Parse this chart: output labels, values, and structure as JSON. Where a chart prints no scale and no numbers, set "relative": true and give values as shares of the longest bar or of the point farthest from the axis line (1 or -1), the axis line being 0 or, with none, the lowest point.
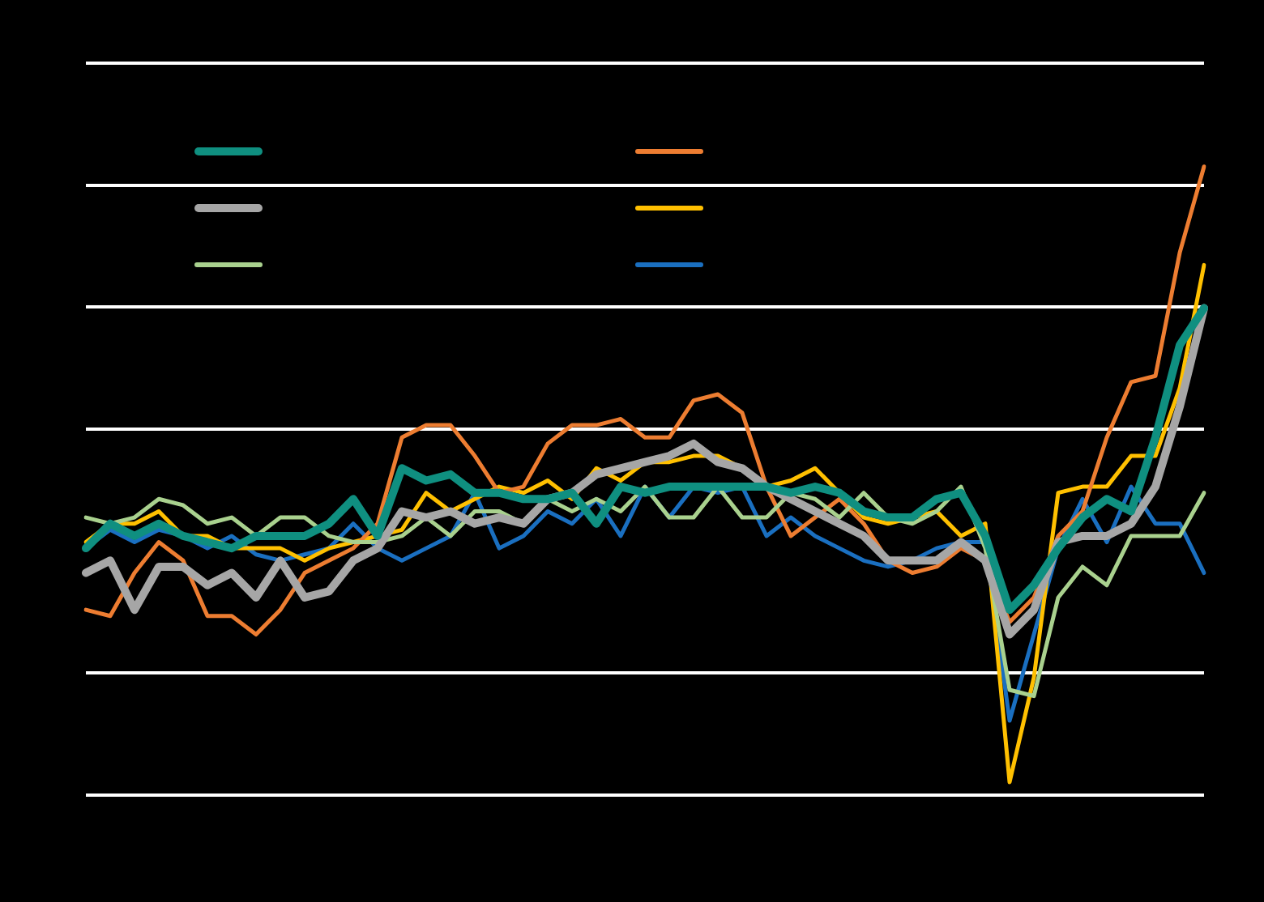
{
  "chart_data": {
    "type": "line",
    "relative": true,
    "grid": "y",
    "marker": "none",
    "line_style": "solid",
    "categories": [
      null,
      null,
      null,
      null,
      null,
      null,
      null,
      null,
      null,
      null,
      null,
      null,
      null,
      null,
      null,
      null,
      null,
      null,
      null,
      null,
      null,
      null,
      null,
      null,
      null,
      null,
      null,
      null,
      null,
      null,
      null,
      null,
      null,
      null,
      null,
      null,
      null,
      null,
      null,
      null,
      null,
      null,
      null,
      null,
      null,
      null,
      null
    ],
    "series": [
      {
        "color": "#0f8f80",
        "values": [
          0.38,
          0.42,
          0.4,
          0.42,
          0.4,
          0.39,
          0.38,
          0.4,
          0.4,
          0.4,
          0.42,
          0.46,
          0.4,
          0.51,
          0.49,
          0.5,
          0.47,
          0.47,
          0.46,
          0.46,
          0.47,
          0.42,
          0.48,
          0.47,
          0.48,
          0.48,
          0.48,
          0.48,
          0.48,
          0.47,
          0.48,
          0.47,
          0.44,
          0.43,
          0.43,
          0.46,
          0.47,
          0.4,
          0.28,
          0.32,
          0.38,
          0.43,
          0.46,
          0.44,
          0.56,
          0.71,
          0.77
        ]
      },
      {
        "color": "#a6a6a6",
        "values": [
          0.34,
          0.36,
          0.28,
          0.35,
          0.35,
          0.32,
          0.34,
          0.3,
          0.36,
          0.3,
          0.31,
          0.36,
          0.38,
          0.44,
          0.43,
          0.44,
          0.42,
          0.43,
          0.42,
          0.46,
          0.47,
          0.5,
          0.51,
          0.52,
          0.53,
          0.55,
          0.52,
          0.51,
          0.48,
          0.46,
          0.44,
          0.42,
          0.4,
          0.36,
          0.36,
          0.36,
          0.39,
          0.36,
          0.24,
          0.28,
          0.39,
          0.4,
          0.4,
          0.42,
          0.48,
          0.61,
          0.77
        ]
      },
      {
        "color": "#a9d18e",
        "values": [
          0.43,
          0.42,
          0.43,
          0.46,
          0.45,
          0.42,
          0.43,
          0.4,
          0.43,
          0.43,
          0.4,
          0.39,
          0.39,
          0.4,
          0.43,
          0.4,
          0.44,
          0.44,
          0.42,
          0.46,
          0.44,
          0.46,
          0.44,
          0.48,
          0.43,
          0.43,
          0.48,
          0.43,
          0.43,
          0.47,
          0.46,
          0.43,
          0.47,
          0.43,
          0.42,
          0.44,
          0.48,
          0.38,
          0.15,
          0.14,
          0.3,
          0.35,
          0.32,
          0.4,
          0.4,
          0.4,
          0.47
        ]
      },
      {
        "color": "#ed7d31",
        "values": [
          0.28,
          0.27,
          0.34,
          0.39,
          0.36,
          0.27,
          0.27,
          0.24,
          0.28,
          0.34,
          0.36,
          0.38,
          0.42,
          0.56,
          0.58,
          0.58,
          0.53,
          0.47,
          0.48,
          0.55,
          0.58,
          0.58,
          0.59,
          0.56,
          0.56,
          0.62,
          0.63,
          0.6,
          0.48,
          0.4,
          0.43,
          0.46,
          0.42,
          0.36,
          0.34,
          0.35,
          0.38,
          0.36,
          0.26,
          0.3,
          0.4,
          0.44,
          0.56,
          0.65,
          0.66,
          0.86,
          1
        ]
      },
      {
        "color": "#ffc000",
        "values": [
          0.39,
          0.42,
          0.42,
          0.44,
          0.4,
          0.4,
          0.38,
          0.38,
          0.38,
          0.36,
          0.38,
          0.39,
          0.4,
          0.41,
          0.47,
          0.44,
          0.46,
          0.48,
          0.47,
          0.49,
          0.46,
          0.51,
          0.49,
          0.52,
          0.52,
          0.53,
          0.53,
          0.51,
          0.48,
          0.49,
          0.51,
          0.47,
          0.43,
          0.42,
          0.43,
          0.44,
          0.4,
          0.42,
          0,
          0.17,
          0.47,
          0.48,
          0.48,
          0.53,
          0.53,
          0.64,
          0.84
        ]
      },
      {
        "color": "#1a6fc0",
        "values": [
          0.38,
          0.41,
          0.39,
          0.41,
          0.4,
          0.38,
          0.4,
          0.37,
          0.36,
          0.37,
          0.38,
          0.42,
          0.38,
          0.36,
          0.38,
          0.4,
          0.47,
          0.38,
          0.4,
          0.44,
          0.42,
          0.46,
          0.4,
          0.48,
          0.43,
          0.48,
          0.47,
          0.48,
          0.4,
          0.43,
          0.4,
          0.38,
          0.36,
          0.35,
          0.36,
          0.38,
          0.39,
          0.39,
          0.1,
          0.24,
          0.38,
          0.46,
          0.39,
          0.48,
          0.42,
          0.42,
          0.34
        ]
      }
    ]
  }
}
